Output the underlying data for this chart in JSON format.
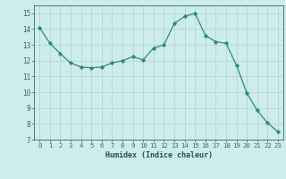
{
  "x": [
    0,
    1,
    2,
    3,
    4,
    5,
    6,
    7,
    8,
    9,
    10,
    11,
    12,
    13,
    14,
    15,
    16,
    17,
    18,
    19,
    20,
    21,
    22,
    23
  ],
  "y": [
    14.1,
    13.1,
    12.45,
    11.85,
    11.6,
    11.55,
    11.6,
    11.85,
    12.0,
    12.25,
    12.05,
    12.8,
    13.0,
    14.35,
    14.8,
    15.0,
    13.6,
    13.2,
    13.1,
    11.7,
    9.95,
    8.85,
    8.05,
    7.5
  ],
  "xlim": [
    -0.5,
    23.5
  ],
  "ylim": [
    7,
    15.5
  ],
  "yticks": [
    7,
    8,
    9,
    10,
    11,
    12,
    13,
    14,
    15
  ],
  "xticks": [
    0,
    1,
    2,
    3,
    4,
    5,
    6,
    7,
    8,
    9,
    10,
    11,
    12,
    13,
    14,
    15,
    16,
    17,
    18,
    19,
    20,
    21,
    22,
    23
  ],
  "xlabel": "Humidex (Indice chaleur)",
  "line_color": "#2e8b7a",
  "bg_color": "#ceecea",
  "grid_color": "#aed8d4",
  "tick_color": "#2e6b6a",
  "label_color": "#1a5555"
}
